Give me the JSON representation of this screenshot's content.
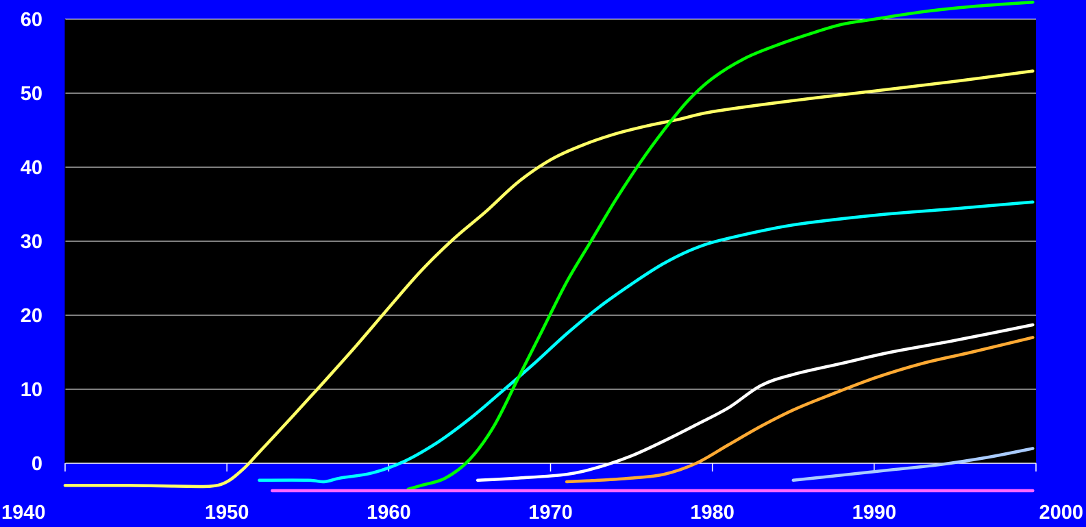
{
  "chart_data": {
    "type": "line",
    "title": "",
    "xlabel": "",
    "ylabel": "",
    "xlim": [
      1940,
      2000
    ],
    "ylim": [
      0,
      60
    ],
    "x_ticks": [
      1940,
      1950,
      1960,
      1970,
      1980,
      1990,
      2000
    ],
    "y_ticks": [
      0,
      10,
      20,
      30,
      40,
      50,
      60
    ],
    "grid": true,
    "legend": "none",
    "colors": {
      "background": "#0000ff",
      "plot_area": "#000000",
      "grid": "#ffffff",
      "text": "#ffffff"
    },
    "series": [
      {
        "color": "#ffff66",
        "points": [
          [
            1940,
            -3
          ],
          [
            1944,
            -3
          ],
          [
            1947,
            -3.1
          ],
          [
            1949,
            -3.1
          ],
          [
            1950,
            -2.5
          ],
          [
            1951,
            -0.8
          ],
          [
            1952,
            1.5
          ],
          [
            1954,
            6.2
          ],
          [
            1956,
            11
          ],
          [
            1958,
            15.9
          ],
          [
            1960,
            21
          ],
          [
            1962,
            26
          ],
          [
            1964,
            30.3
          ],
          [
            1966,
            34
          ],
          [
            1968,
            38
          ],
          [
            1970,
            41
          ],
          [
            1972,
            43
          ],
          [
            1974,
            44.5
          ],
          [
            1976,
            45.6
          ],
          [
            1978,
            46.5
          ],
          [
            1980,
            47.5
          ],
          [
            1985,
            49
          ],
          [
            1990,
            50.3
          ],
          [
            1995,
            51.6
          ],
          [
            1999.8,
            53
          ]
        ]
      },
      {
        "color": "#00ffff",
        "points": [
          [
            1952,
            -2.3
          ],
          [
            1955,
            -2.3
          ],
          [
            1956,
            -2.5
          ],
          [
            1957,
            -2
          ],
          [
            1959,
            -1.3
          ],
          [
            1961,
            0.3
          ],
          [
            1963,
            2.8
          ],
          [
            1965,
            6
          ],
          [
            1967,
            9.7
          ],
          [
            1969,
            13.5
          ],
          [
            1971,
            17.5
          ],
          [
            1973,
            21.1
          ],
          [
            1975,
            24.2
          ],
          [
            1977,
            27
          ],
          [
            1979,
            29.1
          ],
          [
            1981,
            30.4
          ],
          [
            1985,
            32.2
          ],
          [
            1990,
            33.5
          ],
          [
            1995,
            34.4
          ],
          [
            1999.8,
            35.3
          ]
        ]
      },
      {
        "color": "#00ff00",
        "points": [
          [
            1961.2,
            -3.5
          ],
          [
            1962,
            -3
          ],
          [
            1963.5,
            -2
          ],
          [
            1965,
            0.5
          ],
          [
            1966.5,
            5
          ],
          [
            1968,
            11.5
          ],
          [
            1969.5,
            18
          ],
          [
            1971,
            24.5
          ],
          [
            1972.5,
            30
          ],
          [
            1974,
            35.5
          ],
          [
            1975.5,
            40.5
          ],
          [
            1977,
            45
          ],
          [
            1978.5,
            49
          ],
          [
            1980,
            52
          ],
          [
            1982,
            54.7
          ],
          [
            1984,
            56.5
          ],
          [
            1986,
            58
          ],
          [
            1988,
            59.3
          ],
          [
            1990,
            60
          ],
          [
            1993,
            61
          ],
          [
            1996,
            61.7
          ],
          [
            1999.8,
            62.3
          ]
        ]
      },
      {
        "color": "#ffffff",
        "points": [
          [
            1965.5,
            -2.3
          ],
          [
            1968,
            -2
          ],
          [
            1971,
            -1.5
          ],
          [
            1973,
            -0.5
          ],
          [
            1975,
            1
          ],
          [
            1977,
            3
          ],
          [
            1979,
            5.2
          ],
          [
            1981,
            7.5
          ],
          [
            1983,
            10.5
          ],
          [
            1985,
            12
          ],
          [
            1988,
            13.5
          ],
          [
            1991,
            15
          ],
          [
            1995,
            16.6
          ],
          [
            1999.8,
            18.7
          ]
        ]
      },
      {
        "color": "#ffaa33",
        "points": [
          [
            1971,
            -2.5
          ],
          [
            1973,
            -2.3
          ],
          [
            1975,
            -2
          ],
          [
            1977,
            -1.5
          ],
          [
            1979,
            0
          ],
          [
            1981,
            2.5
          ],
          [
            1983,
            5
          ],
          [
            1985,
            7.2
          ],
          [
            1987,
            9
          ],
          [
            1990,
            11.5
          ],
          [
            1993,
            13.5
          ],
          [
            1996,
            15
          ],
          [
            1999.8,
            17
          ]
        ]
      },
      {
        "color": "#aaccff",
        "points": [
          [
            1985,
            -2.3
          ],
          [
            1988,
            -1.6
          ],
          [
            1991,
            -0.9
          ],
          [
            1994,
            -0.2
          ],
          [
            1997,
            0.8
          ],
          [
            1999.8,
            2
          ]
        ]
      },
      {
        "color": "#ff66ff",
        "points": [
          [
            1952.8,
            -3.7
          ],
          [
            1999.8,
            -3.7
          ]
        ]
      }
    ]
  }
}
